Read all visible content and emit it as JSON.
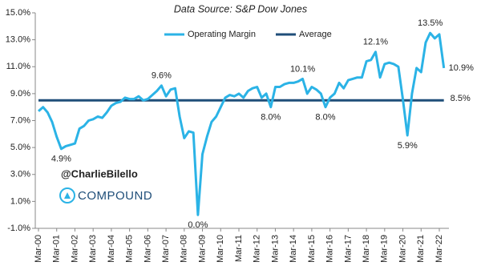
{
  "chart_data": {
    "type": "line",
    "title": "Data Source: S&P Dow Jones",
    "categories": [
      "Mar-00",
      null,
      null,
      null,
      "Mar-01",
      null,
      null,
      null,
      "Mar-02",
      null,
      null,
      null,
      "Mar-03",
      null,
      null,
      null,
      "Mar-04",
      null,
      null,
      null,
      "Mar-05",
      null,
      null,
      null,
      "Mar-06",
      null,
      null,
      null,
      "Mar-07",
      null,
      null,
      null,
      "Mar-08",
      null,
      null,
      null,
      "Mar-09",
      null,
      null,
      null,
      "Mar-10",
      null,
      null,
      null,
      "Mar-11",
      null,
      null,
      null,
      "Mar-12",
      null,
      null,
      null,
      "Mar-13",
      null,
      null,
      null,
      "Mar-14",
      null,
      null,
      null,
      "Mar-15",
      null,
      null,
      null,
      "Mar-16",
      null,
      null,
      null,
      "Mar-17",
      null,
      null,
      null,
      "Mar-18",
      null,
      null,
      null,
      "Mar-19",
      null,
      null,
      null,
      "Mar-20",
      null,
      null,
      null,
      "Mar-21",
      null,
      null,
      null,
      "Mar-22",
      null
    ],
    "series": [
      {
        "name": "Operating Margin",
        "color": "#2bb3e6",
        "values": [
          7.7,
          8.0,
          7.6,
          6.9,
          5.8,
          4.9,
          5.1,
          5.2,
          5.3,
          6.4,
          6.6,
          7.0,
          7.1,
          7.3,
          7.2,
          7.6,
          8.1,
          8.3,
          8.4,
          8.7,
          8.6,
          8.6,
          8.8,
          8.5,
          8.6,
          8.9,
          9.2,
          9.6,
          8.8,
          9.3,
          9.4,
          7.3,
          5.7,
          6.2,
          6.1,
          0.0,
          4.5,
          5.8,
          6.9,
          7.3,
          8.0,
          8.7,
          8.9,
          8.8,
          9.0,
          8.7,
          9.2,
          9.4,
          9.5,
          8.7,
          9.0,
          8.0,
          9.5,
          9.5,
          9.7,
          9.8,
          9.8,
          9.9,
          10.1,
          9.0,
          9.5,
          9.3,
          9.0,
          8.0,
          8.7,
          9.0,
          9.8,
          9.4,
          10.0,
          10.1,
          10.2,
          10.2,
          11.4,
          11.5,
          12.1,
          10.2,
          11.2,
          11.3,
          11.2,
          11.0,
          8.6,
          5.9,
          9.0,
          10.9,
          10.6,
          12.8,
          13.5,
          13.1,
          13.4,
          10.9
        ],
        "value_labels": [
          null,
          null,
          null,
          null,
          null,
          "4.9%",
          null,
          null,
          null,
          null,
          null,
          null,
          null,
          null,
          null,
          null,
          null,
          null,
          null,
          null,
          null,
          null,
          null,
          null,
          null,
          null,
          null,
          "9.6%",
          null,
          null,
          null,
          null,
          null,
          null,
          null,
          "0.0%",
          null,
          null,
          null,
          null,
          null,
          null,
          null,
          null,
          null,
          null,
          null,
          null,
          null,
          null,
          null,
          "8.0%",
          null,
          null,
          null,
          null,
          null,
          null,
          "10.1%",
          null,
          null,
          null,
          null,
          "8.0%",
          null,
          null,
          null,
          null,
          null,
          null,
          null,
          null,
          null,
          null,
          "12.1%",
          null,
          null,
          null,
          null,
          null,
          null,
          "5.9%",
          null,
          null,
          null,
          null,
          "13.5%",
          null,
          null,
          "10.9%"
        ]
      }
    ],
    "average": {
      "name": "Average",
      "color": "#1f4e79",
      "value": 8.5,
      "value_label": "8.5%"
    },
    "ylim": [
      -1.0,
      15.0
    ],
    "yticks": [
      {
        "value": -1.0,
        "label": "-1.0%"
      },
      {
        "value": 1.0,
        "label": "1.0%"
      },
      {
        "value": 3.0,
        "label": "3.0%"
      },
      {
        "value": 5.0,
        "label": "5.0%"
      },
      {
        "value": 7.0,
        "label": "7.0%"
      },
      {
        "value": 9.0,
        "label": "9.0%"
      },
      {
        "value": 11.0,
        "label": "11.0%"
      },
      {
        "value": 13.0,
        "label": "13.0%"
      },
      {
        "value": 15.0,
        "label": "15.0%"
      }
    ],
    "watermark": {
      "handle": "@CharlieBilello",
      "brand": "COMPOUND"
    }
  }
}
